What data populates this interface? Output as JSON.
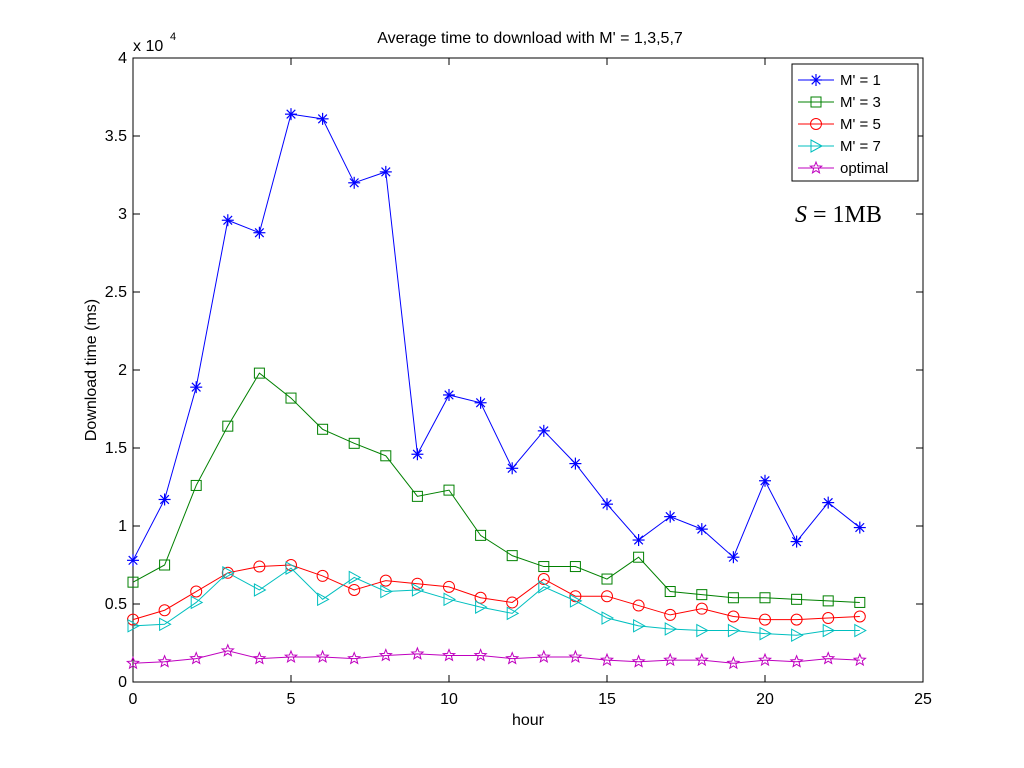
{
  "chart_data": {
    "type": "line",
    "title": "Average time to download with M' = 1,3,5,7",
    "xlabel": "hour",
    "ylabel": "Download time (ms)",
    "y_multiplier_label": "x 10",
    "y_multiplier_exponent": "4",
    "annotation": {
      "italic_part": "S",
      "rest": " = 1MB"
    },
    "xlim": [
      0,
      25
    ],
    "ylim": [
      0,
      4
    ],
    "x_ticks": [
      0,
      5,
      10,
      15,
      20,
      25
    ],
    "x_tick_labels": [
      "0",
      "5",
      "10",
      "15",
      "20",
      "25"
    ],
    "y_ticks": [
      0,
      0.5,
      1,
      1.5,
      2,
      2.5,
      3,
      3.5,
      4
    ],
    "y_tick_labels": [
      "0",
      "0.5",
      "1",
      "1.5",
      "2",
      "2.5",
      "3",
      "3.5",
      "4"
    ],
    "grid": false,
    "legend_position": "top-right",
    "x": [
      0,
      1,
      2,
      3,
      4,
      5,
      6,
      7,
      8,
      9,
      10,
      11,
      12,
      13,
      14,
      15,
      16,
      17,
      18,
      19,
      20,
      21,
      22,
      23
    ],
    "series": [
      {
        "name": "M' = 1",
        "color": "#0000ff",
        "marker": "asterisk",
        "values": [
          0.78,
          1.17,
          1.89,
          2.96,
          2.88,
          3.64,
          3.61,
          3.2,
          3.27,
          1.46,
          1.84,
          1.79,
          1.37,
          1.61,
          1.4,
          1.14,
          0.91,
          1.06,
          0.98,
          0.8,
          1.29,
          0.9,
          1.15,
          0.99
        ]
      },
      {
        "name": "M' = 3",
        "color": "#008000",
        "marker": "square",
        "values": [
          0.64,
          0.75,
          1.26,
          1.64,
          1.98,
          1.82,
          1.62,
          1.53,
          1.45,
          1.19,
          1.23,
          0.94,
          0.81,
          0.74,
          0.74,
          0.66,
          0.8,
          0.58,
          0.56,
          0.54,
          0.54,
          0.53,
          0.52,
          0.51
        ]
      },
      {
        "name": "M' = 5",
        "color": "#ff0000",
        "marker": "circle",
        "values": [
          0.4,
          0.46,
          0.58,
          0.7,
          0.74,
          0.75,
          0.68,
          0.59,
          0.65,
          0.63,
          0.61,
          0.54,
          0.51,
          0.66,
          0.55,
          0.55,
          0.49,
          0.43,
          0.47,
          0.42,
          0.4,
          0.4,
          0.41,
          0.42
        ]
      },
      {
        "name": "M' = 7",
        "color": "#00bfbf",
        "marker": "triangle-right",
        "values": [
          0.36,
          0.37,
          0.51,
          0.7,
          0.59,
          0.73,
          0.53,
          0.67,
          0.58,
          0.59,
          0.53,
          0.48,
          0.44,
          0.61,
          0.52,
          0.41,
          0.36,
          0.34,
          0.33,
          0.33,
          0.31,
          0.3,
          0.33,
          0.33
        ]
      },
      {
        "name": "optimal",
        "color": "#bf00bf",
        "marker": "star",
        "values": [
          0.12,
          0.13,
          0.15,
          0.2,
          0.15,
          0.16,
          0.16,
          0.15,
          0.17,
          0.18,
          0.17,
          0.17,
          0.15,
          0.16,
          0.16,
          0.14,
          0.13,
          0.14,
          0.14,
          0.12,
          0.14,
          0.13,
          0.15,
          0.14
        ]
      }
    ]
  }
}
